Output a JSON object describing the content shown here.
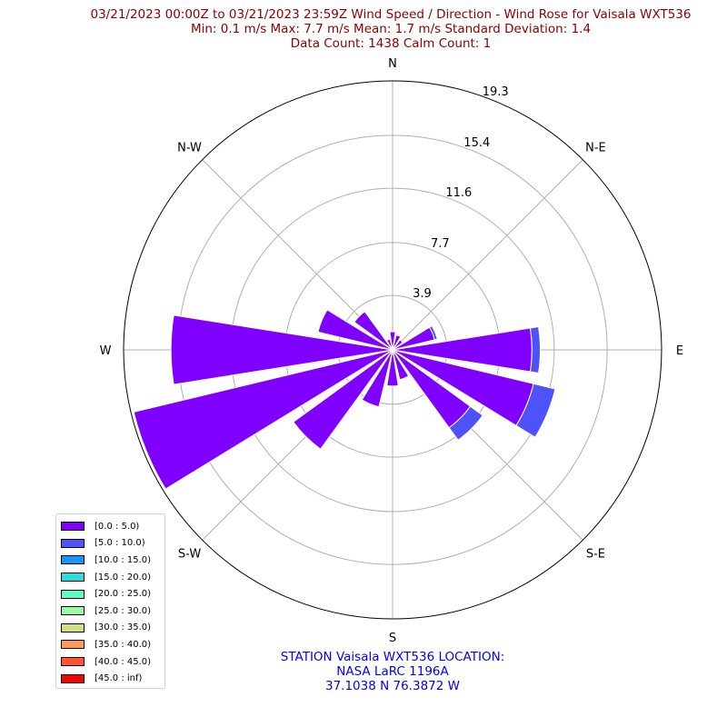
{
  "header": {
    "title_line1": "03/21/2023 00:00Z to 03/21/2023 23:59Z Wind Speed / Direction - Wind Rose for Vaisala WXT536",
    "title_line2": "Min: 0.1 m/s   Max: 7.7 m/s   Mean: 1.7 m/s  Standard Deviation: 1.4",
    "title_line3": "Data Count: 1438  Calm Count:  1"
  },
  "footer": {
    "station_line1": "STATION Vaisala WXT536 LOCATION:",
    "station_line2": "NASA LaRC 1196A",
    "station_line3": "37.1038 N 76.3872 W"
  },
  "colors": {
    "title": "#8b0000",
    "station": "#0000ff",
    "grid": "#b0b0b0"
  },
  "chart_data": {
    "type": "polar-bar",
    "title": "03/21/2023 00:00Z to 03/21/2023 23:59Z Wind Speed / Direction - Wind Rose for Vaisala WXT536",
    "radial_ticks": [
      3.9,
      7.7,
      11.6,
      15.4,
      19.3
    ],
    "rmax": 19.3,
    "direction_labels": [
      {
        "label": "N",
        "angle": 0
      },
      {
        "label": "N-E",
        "angle": 45
      },
      {
        "label": "E",
        "angle": 90
      },
      {
        "label": "S-E",
        "angle": 135
      },
      {
        "label": "S",
        "angle": 180
      },
      {
        "label": "S-W",
        "angle": 225
      },
      {
        "label": "W",
        "angle": 270
      },
      {
        "label": "N-W",
        "angle": 315
      }
    ],
    "bin_width_deg": 22.5,
    "series": [
      {
        "name": "[0.0 : 5.0)",
        "color": "#8000ff",
        "directions": [
          0,
          22.5,
          45,
          67.5,
          90,
          112.5,
          135,
          157.5,
          180,
          202.5,
          225,
          247.5,
          270,
          292.5,
          315,
          337.5
        ],
        "values": [
          1.3,
          1.1,
          0.9,
          3.1,
          10.0,
          10.4,
          6.9,
          2.2,
          2.6,
          4.2,
          8.8,
          19.1,
          15.9,
          5.5,
          3.4,
          0.8
        ]
      },
      {
        "name": "[5.0 : 10.0)",
        "color": "#4f51f9",
        "directions": [
          0,
          22.5,
          45,
          67.5,
          90,
          112.5,
          135,
          157.5,
          180,
          202.5,
          225,
          247.5,
          270,
          292.5,
          315,
          337.5
        ],
        "values": [
          0,
          0,
          0,
          0.2,
          0.6,
          1.6,
          1.1,
          0,
          0,
          0,
          0,
          0,
          0,
          0,
          0,
          0
        ]
      }
    ],
    "legend": [
      {
        "label": "[0.0 : 5.0)",
        "color": "#8000ff"
      },
      {
        "label": "[5.0 : 10.0)",
        "color": "#4f51f9"
      },
      {
        "label": "[10.0 : 15.0)",
        "color": "#1996f3"
      },
      {
        "label": "[15.0 : 20.0)",
        "color": "#2adddd"
      },
      {
        "label": "[20.0 : 25.0)",
        "color": "#62fbc4"
      },
      {
        "label": "[25.0 : 30.0)",
        "color": "#9cfba4"
      },
      {
        "label": "[30.0 : 35.0)",
        "color": "#d4dd80"
      },
      {
        "label": "[35.0 : 40.0)",
        "color": "#ff9b58"
      },
      {
        "label": "[40.0 : 45.0)",
        "color": "#ff5530"
      },
      {
        "label": "[45.0 : inf)",
        "color": "#ff0000"
      }
    ],
    "legend_position": "lower-left",
    "grid": true
  }
}
